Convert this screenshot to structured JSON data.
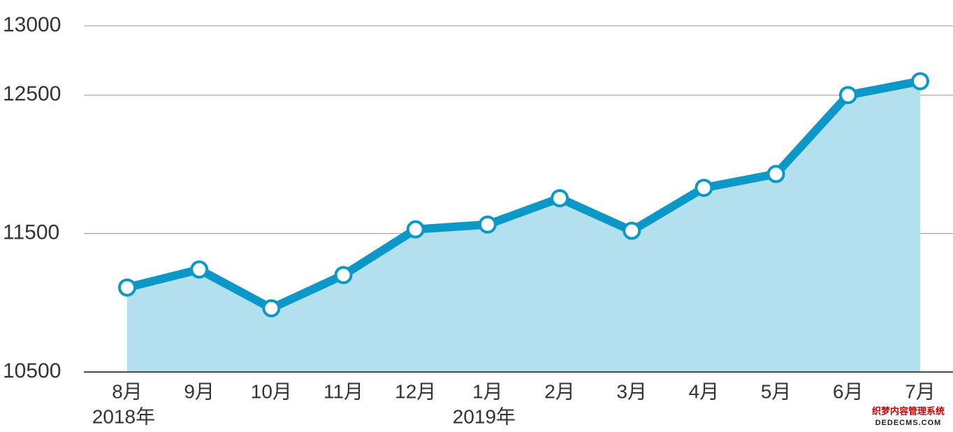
{
  "chart_data": {
    "type": "line",
    "categories": [
      "8月",
      "9月",
      "10月",
      "11月",
      "12月",
      "1月",
      "2月",
      "3月",
      "4月",
      "5月",
      "6月",
      "7月"
    ],
    "group_labels": [
      "2018年",
      null,
      null,
      null,
      null,
      "2019年",
      null,
      null,
      null,
      null,
      null,
      null
    ],
    "values": [
      11110,
      11240,
      10960,
      11200,
      11530,
      11565,
      11755,
      11520,
      11830,
      11930,
      12500,
      12600
    ],
    "color": "#0b98c9",
    "area_color": "#b3e0ef",
    "ylim": [
      10500,
      13000
    ],
    "yticks": [
      10500,
      11500,
      12500,
      13000
    ],
    "grid": true
  },
  "watermark": {
    "title": "织梦内容管理系统",
    "url": "DEDECMS.COM"
  }
}
